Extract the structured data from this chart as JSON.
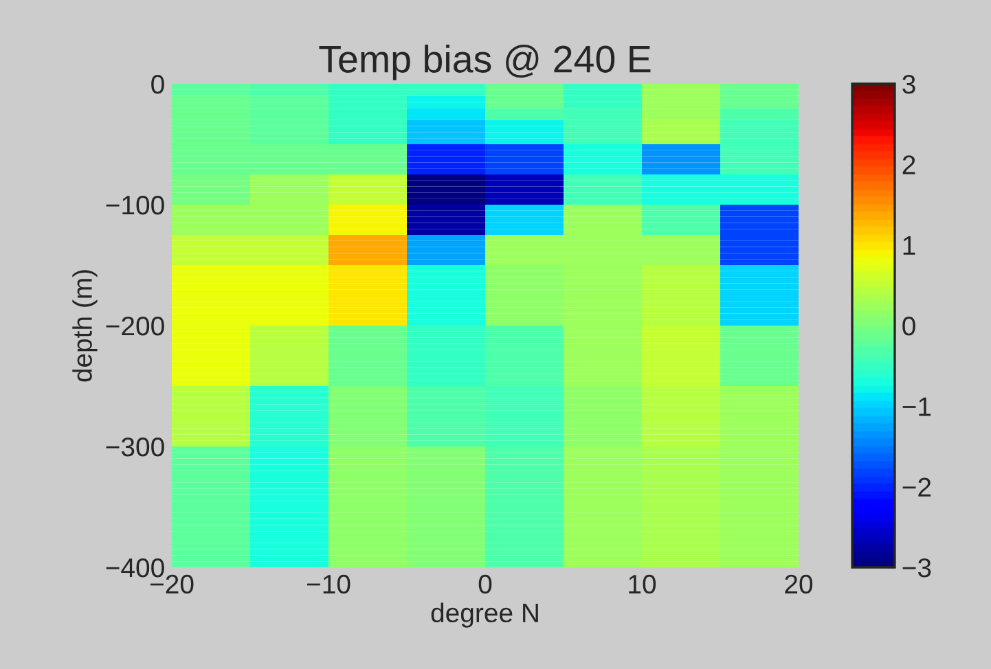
{
  "chart_data": {
    "type": "heatmap",
    "title": "Temp bias @ 240 E",
    "xlabel": "degree N",
    "ylabel": "depth (m)",
    "cells": [
      [
        -0.2,
        -0.3,
        -0.5,
        -0.5,
        -0.1,
        -0.5,
        0.25,
        -0.1
      ],
      [
        -0.2,
        -0.3,
        -0.5,
        -0.5,
        -0.1,
        -0.5,
        0.25,
        -0.1
      ],
      [
        -0.1,
        -0.2,
        -0.5,
        -0.8,
        -0.1,
        -0.5,
        0.25,
        -0.1
      ],
      [
        -0.1,
        -0.2,
        -0.5,
        -0.8,
        -0.1,
        -0.5,
        0.25,
        -0.1
      ],
      [
        -0.1,
        -0.2,
        -0.5,
        -0.9,
        -0.3,
        -0.4,
        0.25,
        -0.3
      ],
      [
        -0.1,
        -0.2,
        -0.5,
        -0.9,
        -0.3,
        -0.4,
        0.25,
        -0.3
      ],
      [
        -0.1,
        -0.2,
        -0.5,
        -1.1,
        -0.8,
        -0.4,
        0.35,
        -0.4
      ],
      [
        -0.1,
        -0.2,
        -0.5,
        -1.1,
        -0.8,
        -0.4,
        0.35,
        -0.4
      ],
      [
        -0.1,
        -0.2,
        -0.5,
        -1.1,
        -0.8,
        -0.4,
        0.35,
        -0.4
      ],
      [
        -0.1,
        -0.2,
        -0.5,
        -1.1,
        -0.8,
        -0.4,
        0.35,
        -0.4
      ],
      [
        -0.1,
        -0.1,
        -0.1,
        -2.0,
        -1.8,
        -0.75,
        -1.4,
        -0.4
      ],
      [
        -0.1,
        -0.1,
        -0.1,
        -2.0,
        -1.8,
        -0.75,
        -1.4,
        -0.4
      ],
      [
        -0.1,
        -0.1,
        -0.1,
        -2.0,
        -1.8,
        -0.75,
        -1.4,
        -0.4
      ],
      [
        -0.1,
        -0.1,
        -0.1,
        -2.0,
        -1.8,
        -0.75,
        -1.4,
        -0.4
      ],
      [
        -0.1,
        -0.1,
        -0.1,
        -2.0,
        -1.8,
        -0.75,
        -1.4,
        -0.4
      ],
      [
        -0.05,
        0.2,
        0.5,
        -3.0,
        -2.7,
        -0.4,
        -0.7,
        -0.7
      ],
      [
        -0.05,
        0.2,
        0.5,
        -3.0,
        -2.7,
        -0.4,
        -0.7,
        -0.7
      ],
      [
        -0.05,
        0.2,
        0.5,
        -3.0,
        -2.7,
        -0.4,
        -0.7,
        -0.7
      ],
      [
        -0.05,
        0.2,
        0.5,
        -3.0,
        -2.7,
        -0.4,
        -0.7,
        -0.7
      ],
      [
        -0.05,
        0.2,
        0.5,
        -3.0,
        -2.7,
        -0.4,
        -0.7,
        -0.7
      ],
      [
        0.2,
        0.2,
        0.85,
        -2.8,
        -1.0,
        0.2,
        -0.3,
        -1.8
      ],
      [
        0.2,
        0.2,
        0.85,
        -2.8,
        -1.0,
        0.2,
        -0.3,
        -1.8
      ],
      [
        0.2,
        0.2,
        0.85,
        -2.8,
        -1.0,
        0.2,
        -0.3,
        -1.8
      ],
      [
        0.2,
        0.2,
        0.85,
        -2.8,
        -1.0,
        0.2,
        -0.3,
        -1.8
      ],
      [
        0.2,
        0.2,
        0.85,
        -2.8,
        -1.0,
        0.2,
        -0.3,
        -1.8
      ],
      [
        0.55,
        0.55,
        1.35,
        -1.3,
        0.2,
        0.2,
        0.2,
        -1.8
      ],
      [
        0.55,
        0.55,
        1.35,
        -1.3,
        0.2,
        0.2,
        0.2,
        -1.8
      ],
      [
        0.55,
        0.55,
        1.35,
        -1.3,
        0.2,
        0.2,
        0.2,
        -1.8
      ],
      [
        0.55,
        0.55,
        1.35,
        -1.3,
        0.2,
        0.2,
        0.2,
        -1.8
      ],
      [
        0.55,
        0.55,
        1.35,
        -1.3,
        0.2,
        0.2,
        0.2,
        -1.8
      ],
      [
        0.75,
        0.75,
        0.95,
        -0.7,
        0.1,
        0.2,
        0.45,
        -1.0
      ],
      [
        0.75,
        0.75,
        0.95,
        -0.7,
        0.1,
        0.2,
        0.45,
        -1.0
      ],
      [
        0.75,
        0.75,
        0.95,
        -0.7,
        0.1,
        0.2,
        0.45,
        -1.0
      ],
      [
        0.75,
        0.75,
        0.95,
        -0.7,
        0.1,
        0.2,
        0.45,
        -1.0
      ],
      [
        0.75,
        0.75,
        0.95,
        -0.7,
        0.1,
        0.2,
        0.45,
        -1.0
      ],
      [
        0.75,
        0.75,
        0.95,
        -0.7,
        0.1,
        0.2,
        0.45,
        -1.0
      ],
      [
        0.75,
        0.75,
        0.95,
        -0.7,
        0.1,
        0.2,
        0.45,
        -1.0
      ],
      [
        0.75,
        0.75,
        0.95,
        -0.7,
        0.1,
        0.2,
        0.45,
        -1.0
      ],
      [
        0.75,
        0.75,
        0.95,
        -0.7,
        0.1,
        0.2,
        0.45,
        -1.0
      ],
      [
        0.75,
        0.75,
        0.95,
        -0.7,
        0.1,
        0.2,
        0.45,
        -1.0
      ],
      [
        0.75,
        0.45,
        -0.1,
        -0.55,
        -0.3,
        0.2,
        0.55,
        -0.1
      ],
      [
        0.75,
        0.45,
        -0.1,
        -0.55,
        -0.3,
        0.2,
        0.55,
        -0.1
      ],
      [
        0.75,
        0.45,
        -0.1,
        -0.55,
        -0.3,
        0.2,
        0.55,
        -0.1
      ],
      [
        0.75,
        0.45,
        -0.1,
        -0.55,
        -0.3,
        0.2,
        0.55,
        -0.1
      ],
      [
        0.75,
        0.45,
        -0.1,
        -0.55,
        -0.3,
        0.2,
        0.55,
        -0.1
      ],
      [
        0.75,
        0.45,
        -0.1,
        -0.55,
        -0.3,
        0.2,
        0.55,
        -0.1
      ],
      [
        0.75,
        0.45,
        -0.1,
        -0.55,
        -0.3,
        0.2,
        0.55,
        -0.1
      ],
      [
        0.75,
        0.45,
        -0.1,
        -0.55,
        -0.3,
        0.2,
        0.55,
        -0.1
      ],
      [
        0.75,
        0.45,
        -0.1,
        -0.55,
        -0.3,
        0.2,
        0.55,
        -0.1
      ],
      [
        0.75,
        0.45,
        -0.1,
        -0.55,
        -0.3,
        0.2,
        0.55,
        -0.1
      ],
      [
        0.45,
        -0.6,
        0.05,
        -0.35,
        -0.45,
        0.15,
        0.45,
        0.2
      ],
      [
        0.45,
        -0.6,
        0.05,
        -0.35,
        -0.45,
        0.15,
        0.45,
        0.2
      ],
      [
        0.45,
        -0.6,
        0.05,
        -0.35,
        -0.45,
        0.15,
        0.45,
        0.2
      ],
      [
        0.45,
        -0.6,
        0.05,
        -0.35,
        -0.45,
        0.15,
        0.45,
        0.2
      ],
      [
        0.45,
        -0.6,
        0.05,
        -0.35,
        -0.45,
        0.15,
        0.45,
        0.2
      ],
      [
        0.45,
        -0.6,
        0.05,
        -0.35,
        -0.45,
        0.15,
        0.45,
        0.2
      ],
      [
        0.45,
        -0.6,
        0.05,
        -0.35,
        -0.45,
        0.15,
        0.45,
        0.2
      ],
      [
        0.45,
        -0.6,
        0.05,
        -0.35,
        -0.45,
        0.15,
        0.45,
        0.2
      ],
      [
        0.45,
        -0.6,
        0.05,
        -0.35,
        -0.45,
        0.15,
        0.45,
        0.2
      ],
      [
        0.45,
        -0.6,
        0.05,
        -0.35,
        -0.45,
        0.15,
        0.45,
        0.2
      ],
      [
        -0.25,
        -0.7,
        0.15,
        0.05,
        -0.3,
        0.2,
        0.35,
        0.25
      ],
      [
        -0.25,
        -0.7,
        0.15,
        0.05,
        -0.3,
        0.2,
        0.35,
        0.25
      ],
      [
        -0.25,
        -0.7,
        0.15,
        0.05,
        -0.3,
        0.2,
        0.35,
        0.25
      ],
      [
        -0.25,
        -0.7,
        0.15,
        0.05,
        -0.3,
        0.2,
        0.35,
        0.25
      ],
      [
        -0.25,
        -0.7,
        0.15,
        0.05,
        -0.3,
        0.2,
        0.35,
        0.25
      ],
      [
        -0.25,
        -0.7,
        0.15,
        0.05,
        -0.3,
        0.2,
        0.35,
        0.25
      ],
      [
        -0.25,
        -0.7,
        0.15,
        0.05,
        -0.3,
        0.2,
        0.35,
        0.25
      ],
      [
        -0.25,
        -0.7,
        0.15,
        0.05,
        -0.3,
        0.2,
        0.35,
        0.25
      ],
      [
        -0.25,
        -0.7,
        0.15,
        0.05,
        -0.3,
        0.2,
        0.35,
        0.25
      ],
      [
        -0.25,
        -0.7,
        0.15,
        0.05,
        -0.3,
        0.2,
        0.35,
        0.25
      ],
      [
        -0.25,
        -0.7,
        0.15,
        0.05,
        -0.3,
        0.2,
        0.35,
        0.25
      ],
      [
        -0.25,
        -0.7,
        0.15,
        0.05,
        -0.3,
        0.2,
        0.35,
        0.25
      ],
      [
        -0.25,
        -0.7,
        0.15,
        0.05,
        -0.3,
        0.2,
        0.35,
        0.25
      ],
      [
        -0.25,
        -0.7,
        0.15,
        0.05,
        -0.3,
        0.2,
        0.35,
        0.25
      ],
      [
        -0.25,
        -0.7,
        0.15,
        0.05,
        -0.3,
        0.2,
        0.35,
        0.25
      ],
      [
        -0.25,
        -0.7,
        0.15,
        0.05,
        -0.3,
        0.2,
        0.35,
        0.25
      ],
      [
        -0.25,
        -0.7,
        0.15,
        0.05,
        -0.3,
        0.2,
        0.35,
        0.25
      ],
      [
        -0.25,
        -0.7,
        0.15,
        0.05,
        -0.3,
        0.2,
        0.35,
        0.25
      ],
      [
        -0.25,
        -0.7,
        0.15,
        0.05,
        -0.3,
        0.2,
        0.35,
        0.25
      ],
      [
        -0.25,
        -0.7,
        0.15,
        0.05,
        -0.3,
        0.2,
        0.35,
        0.25
      ]
    ],
    "xlim": [
      -20,
      20
    ],
    "xticks": [
      -20,
      -10,
      0,
      10,
      20
    ],
    "ylim": [
      -400,
      0
    ],
    "yticks": [
      -400,
      -300,
      -200,
      -100,
      0
    ],
    "clim": [
      -3,
      3
    ],
    "cticks": [
      -3,
      -2,
      -1,
      0,
      1,
      2,
      3
    ],
    "grid": false
  }
}
